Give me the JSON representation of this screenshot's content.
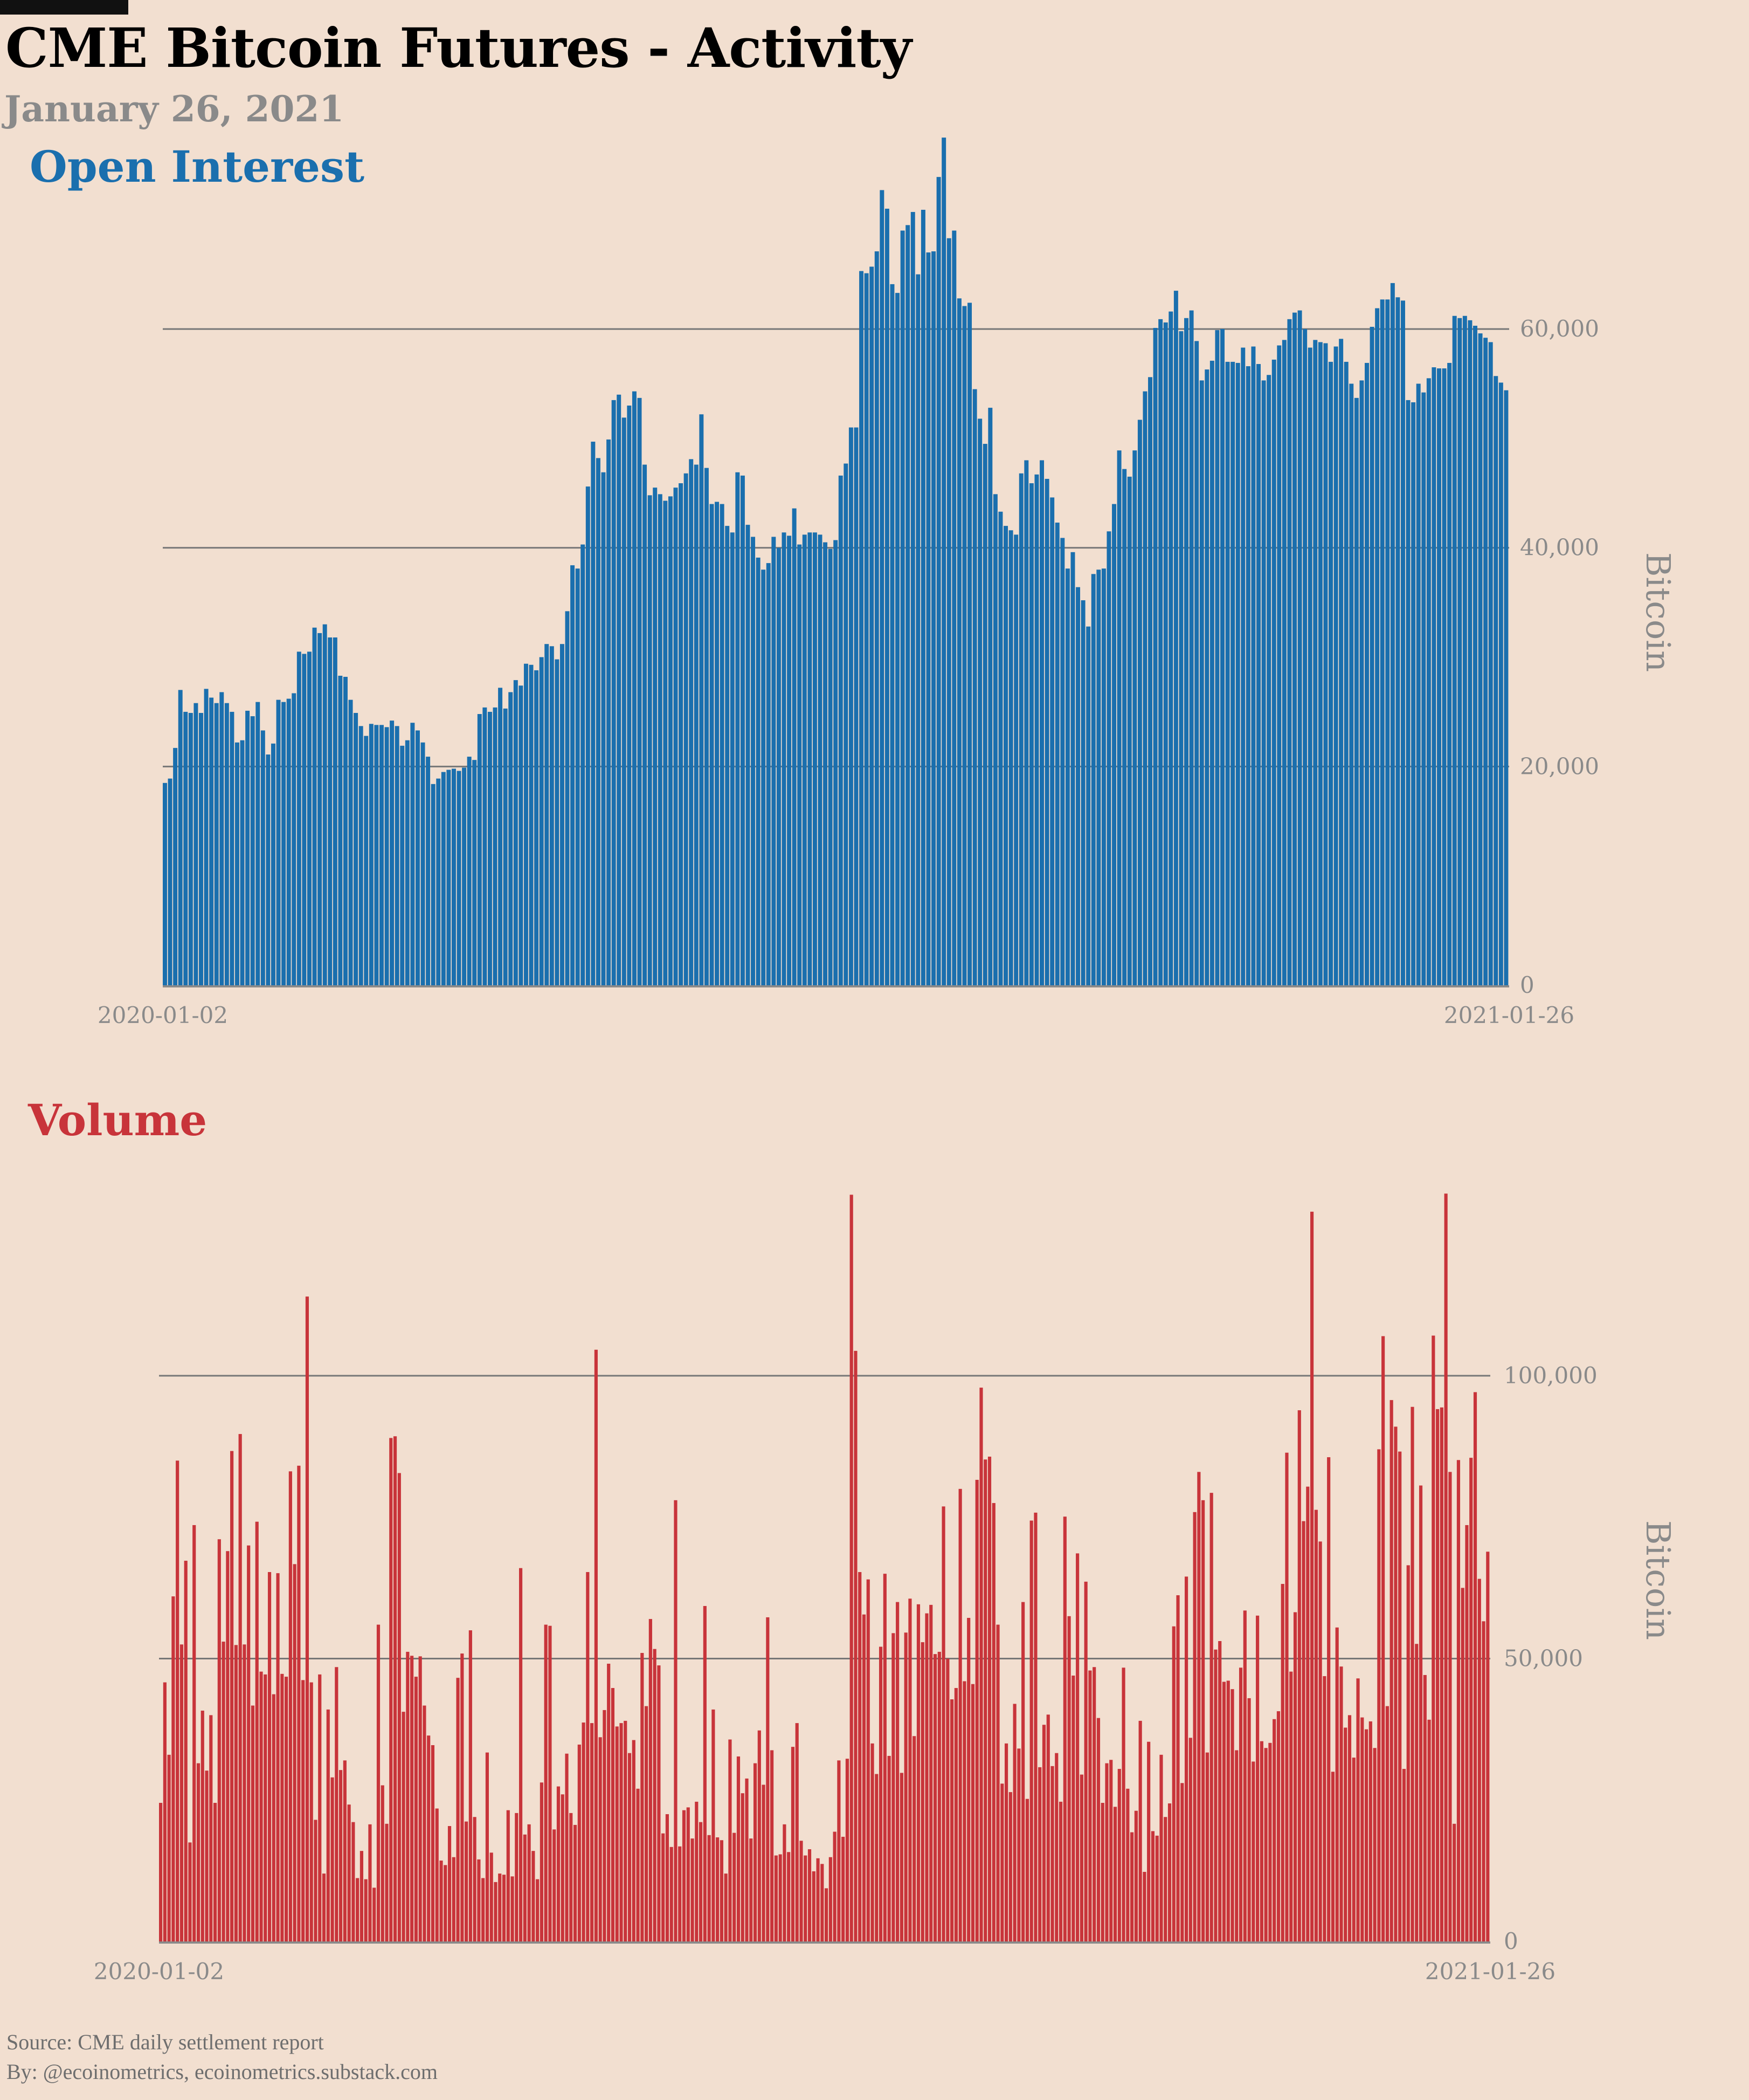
{
  "title": "CME Bitcoin Futures - Activity",
  "subtitle": "January 26, 2021",
  "footer": {
    "source": "Source: CME daily settlement report",
    "byline": "By: @ecoinometrics, ecoinometrics.substack.com"
  },
  "colors": {
    "background": "#f2dfd0",
    "open_interest": "#1a6fae",
    "volume": "#c8343a",
    "grid": "#777777",
    "axis_text": "#8a8a8a"
  },
  "chart_data": [
    {
      "type": "bar",
      "title": "Open Interest",
      "ylabel": "Bitcoin",
      "x_start": "2020-01-02",
      "x_end": "2021-01-26",
      "xtick_labels": [
        "2020-01-02",
        "2021-01-26"
      ],
      "ylim": [
        0,
        78000
      ],
      "yticks": [
        0,
        20000,
        40000,
        60000
      ],
      "ytick_labels": [
        "0",
        "20,000",
        "40,000",
        "60,000"
      ],
      "grid": true,
      "ytick_side": "right",
      "values": [
        18500,
        18900,
        21700,
        27000,
        25000,
        24900,
        25800,
        24900,
        27100,
        26300,
        25800,
        26800,
        25800,
        25000,
        22200,
        22400,
        25100,
        24600,
        25900,
        23300,
        21100,
        22100,
        26100,
        25900,
        26200,
        26700,
        30500,
        30300,
        30500,
        32700,
        32200,
        33000,
        31800,
        31800,
        28300,
        28200,
        26100,
        24900,
        23700,
        22800,
        23900,
        23800,
        23800,
        23600,
        24200,
        23700,
        21900,
        22400,
        24000,
        23300,
        22200,
        20900,
        18400,
        18900,
        19500,
        19700,
        19800,
        19600,
        19900,
        20900,
        20600,
        24800,
        25400,
        25000,
        25400,
        27200,
        25300,
        26800,
        27900,
        27400,
        29400,
        29300,
        28800,
        30000,
        31200,
        31000,
        29800,
        31200,
        34200,
        38400,
        38100,
        40300,
        45600,
        49700,
        48200,
        46900,
        49900,
        53500,
        54000,
        51900,
        53000,
        54300,
        53700,
        47600,
        44800,
        45500,
        44900,
        44300,
        44700,
        45500,
        45900,
        46800,
        48100,
        47600,
        52200,
        47300,
        44000,
        44200,
        44000,
        42000,
        41400,
        46900,
        46600,
        42100,
        41000,
        39100,
        38000,
        38600,
        41000,
        40000,
        41400,
        41100,
        43600,
        40300,
        41200,
        41400,
        41400,
        41200,
        40500,
        39900,
        40700,
        46600,
        47700,
        51000,
        51000,
        65300,
        65100,
        65700,
        67100,
        72700,
        71000,
        64100,
        63300,
        69000,
        69500,
        70700,
        65000,
        70900,
        67000,
        67100,
        73900,
        77500,
        68300,
        69000,
        62800,
        62100,
        62400,
        54500,
        51800,
        49500,
        52800,
        44900,
        43300,
        42000,
        41600,
        41200,
        46800,
        48000,
        45900,
        46700,
        48000,
        46300,
        44600,
        42300,
        40900,
        38100,
        39600,
        36400,
        35200,
        32800,
        37600,
        38000,
        38100,
        41500,
        44000,
        48900,
        47200,
        46500,
        48900,
        51700,
        54300,
        55600,
        60100,
        60900,
        60600,
        61600,
        63500,
        59800,
        61000,
        61700,
        58900,
        55300,
        56300,
        57100,
        59900,
        60000,
        57000,
        57000,
        56900,
        58300,
        56600,
        58400,
        56800,
        55300,
        55800,
        57200,
        58500,
        59000,
        60900,
        61500,
        61700,
        60000,
        58300,
        59000,
        58800,
        58700,
        57000,
        58400,
        59100,
        57000,
        55000,
        53700,
        55300,
        56900,
        60200,
        61900,
        62700,
        62700,
        64200,
        62900,
        62600,
        53500,
        53300,
        55000,
        54200,
        55500,
        56500,
        56400,
        56400,
        56900,
        61200,
        61000,
        61200,
        60800,
        60300,
        59600,
        59200,
        58800,
        55700,
        55100,
        54400
      ]
    },
    {
      "type": "bar",
      "title": "Volume",
      "ylabel": "Bitcoin",
      "x_start": "2020-01-02",
      "x_end": "2021-01-26",
      "xtick_labels": [
        "2020-01-02",
        "2021-01-26"
      ],
      "ylim": [
        0,
        145000
      ],
      "yticks": [
        0,
        50000,
        100000
      ],
      "ytick_labels": [
        "0",
        "50,000",
        "100,000"
      ],
      "grid": true,
      "ytick_side": "right",
      "values": [
        24500,
        45800,
        33000,
        61000,
        85000,
        52500,
        67300,
        17500,
        73600,
        31500,
        40800,
        30200,
        40000,
        24500,
        71100,
        53000,
        69000,
        86700,
        52400,
        89700,
        52500,
        70000,
        41700,
        74200,
        47700,
        47200,
        65300,
        43700,
        65100,
        47300,
        46800,
        83100,
        66700,
        84100,
        46200,
        114000,
        45800,
        21500,
        47200,
        12000,
        41000,
        29000,
        48500,
        30300,
        32000,
        24200,
        21100,
        11200,
        16000,
        11000,
        20700,
        9500,
        56000,
        27600,
        20800,
        89000,
        89300,
        82800,
        40600,
        51200,
        50500,
        46800,
        50400,
        41700,
        36400,
        34700,
        23500,
        14300,
        13500,
        20400,
        14900,
        46600,
        50900,
        21200,
        55000,
        22000,
        14500,
        11200,
        33400,
        15700,
        10500,
        12000,
        11800,
        23200,
        11500,
        22700,
        66000,
        18900,
        20700,
        16000,
        11000,
        28100,
        56000,
        55800,
        19800,
        27400,
        26000,
        33200,
        22700,
        20600,
        34800,
        38700,
        65300,
        38600,
        104600,
        36100,
        40900,
        49100,
        44800,
        38000,
        38600,
        39000,
        33300,
        35600,
        27000,
        51000,
        41600,
        57000,
        51700,
        48800,
        19100,
        22500,
        16700,
        78000,
        16800,
        23200,
        23700,
        18200,
        24700,
        21100,
        59300,
        18800,
        41000,
        18400,
        17900,
        12000,
        35700,
        19200,
        32700,
        26200,
        28800,
        18200,
        31500,
        37300,
        27700,
        57300,
        33800,
        15200,
        15400,
        20700,
        15800,
        34400,
        38600,
        17800,
        15200,
        16300,
        12400,
        14700,
        13700,
        9400,
        14900,
        19400,
        32000,
        18500,
        32300,
        132000,
        104400,
        65300,
        57800,
        64000,
        35000,
        29600,
        52100,
        65000,
        32800,
        54500,
        60000,
        29800,
        54600,
        60600,
        36300,
        59600,
        52900,
        58000,
        59500,
        50800,
        51200,
        76900,
        50000,
        42800,
        44800,
        80000,
        46000,
        57200,
        45500,
        81600,
        97900,
        85200,
        85700,
        77500,
        56000,
        27900,
        35000,
        26400,
        42000,
        34100,
        60000,
        25200,
        74400,
        75800,
        30800,
        38300,
        40100,
        31000,
        33300,
        24700,
        75100,
        57500,
        47000,
        68600,
        29500,
        63600,
        47900,
        48500,
        39500,
        24500,
        31500,
        32100,
        23800,
        30500,
        48400,
        27000,
        19300,
        23100,
        39000,
        12300,
        35300,
        19500,
        18700,
        33000,
        22000,
        24400,
        55700,
        61200,
        28000,
        64500,
        36000,
        75900,
        83000,
        78000,
        33400,
        79300,
        51600,
        53100,
        45900,
        46100,
        44600,
        33800,
        48400,
        58500,
        43000,
        31800,
        57600,
        35400,
        34200,
        35100,
        39300,
        40700,
        63200,
        86400,
        47700,
        58200,
        93900,
        74300,
        80400,
        129000,
        76300,
        70700,
        46900,
        85600,
        30000,
        55500,
        48600,
        37800,
        40000,
        32500,
        46500,
        39600,
        37500,
        38900,
        34200,
        87000,
        107000,
        41600,
        95700,
        91000,
        86600,
        30500,
        66500,
        94500,
        52600,
        80600,
        47100,
        39200,
        107100,
        94100,
        94400,
        132200,
        83000,
        20800,
        85100,
        62500,
        73600,
        85500,
        97100,
        64100,
        56600,
        68900
      ]
    }
  ]
}
